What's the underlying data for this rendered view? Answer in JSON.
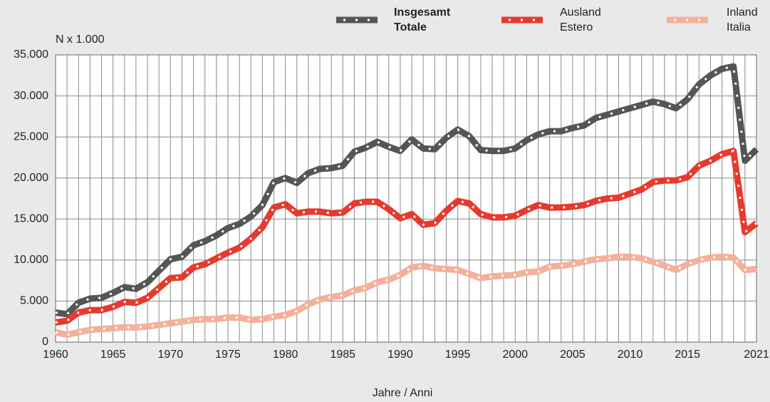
{
  "chart_data": {
    "type": "line",
    "y_axis_label": "N x 1.000",
    "x_axis_label": "Jahre / Anni",
    "x": [
      1960,
      1961,
      1962,
      1963,
      1964,
      1965,
      1966,
      1967,
      1968,
      1969,
      1970,
      1971,
      1972,
      1973,
      1974,
      1975,
      1976,
      1977,
      1978,
      1979,
      1980,
      1981,
      1982,
      1983,
      1984,
      1985,
      1986,
      1987,
      1988,
      1989,
      1990,
      1991,
      1992,
      1993,
      1994,
      1995,
      1996,
      1997,
      1998,
      1999,
      2000,
      2001,
      2002,
      2003,
      2004,
      2005,
      2006,
      2007,
      2008,
      2009,
      2010,
      2011,
      2012,
      2013,
      2014,
      2015,
      2016,
      2017,
      2018,
      2019,
      2020,
      2021
    ],
    "series": [
      {
        "name": "Insgesamt\nTotale",
        "color": "#555555",
        "values": [
          3600,
          3400,
          4800,
          5300,
          5400,
          6000,
          6700,
          6500,
          7300,
          8700,
          10100,
          10400,
          11800,
          12300,
          13000,
          13900,
          14400,
          15300,
          16700,
          19500,
          20000,
          19400,
          20600,
          21100,
          21200,
          21500,
          23200,
          23700,
          24400,
          23800,
          23300,
          24700,
          23600,
          23500,
          24900,
          25900,
          25100,
          23400,
          23300,
          23300,
          23600,
          24600,
          25300,
          25700,
          25700,
          26100,
          26400,
          27300,
          27700,
          28100,
          28500,
          28900,
          29300,
          29000,
          28500,
          29600,
          31400,
          32500,
          33300,
          33600,
          22100,
          23500
        ]
      },
      {
        "name": "Ausland\nEstero",
        "color": "#e8392e",
        "values": [
          2400,
          2600,
          3600,
          3900,
          3900,
          4300,
          4900,
          4800,
          5400,
          6600,
          7800,
          7900,
          9100,
          9500,
          10200,
          10900,
          11500,
          12600,
          14000,
          16400,
          16800,
          15700,
          15900,
          15900,
          15700,
          15800,
          16900,
          17100,
          17100,
          16200,
          15100,
          15600,
          14300,
          14500,
          16000,
          17200,
          16900,
          15600,
          15200,
          15200,
          15400,
          16100,
          16700,
          16400,
          16400,
          16500,
          16700,
          17200,
          17500,
          17600,
          18100,
          18600,
          19500,
          19700,
          19700,
          20100,
          21500,
          22100,
          22900,
          23300,
          13400,
          14500
        ]
      },
      {
        "name": "Inland\nItalia",
        "color": "#f5b09a",
        "values": [
          1200,
          900,
          1200,
          1500,
          1600,
          1700,
          1800,
          1800,
          1900,
          2100,
          2300,
          2500,
          2700,
          2800,
          2800,
          3000,
          3000,
          2700,
          2800,
          3100,
          3300,
          3800,
          4600,
          5200,
          5500,
          5700,
          6300,
          6600,
          7300,
          7600,
          8200,
          9100,
          9300,
          9000,
          8900,
          8800,
          8300,
          7800,
          8000,
          8100,
          8200,
          8500,
          8600,
          9200,
          9300,
          9500,
          9800,
          10100,
          10200,
          10400,
          10400,
          10200,
          9800,
          9300,
          8800,
          9500,
          10000,
          10300,
          10400,
          10300,
          8800,
          8900
        ]
      }
    ],
    "xlim": [
      1960,
      2021
    ],
    "xticks": [
      1960,
      1965,
      1970,
      1975,
      1980,
      1985,
      1990,
      1995,
      2000,
      2005,
      2010,
      2015,
      2021
    ],
    "ylim": [
      0,
      35000
    ],
    "yticks": [
      0,
      {
        "value": 5000,
        "label": "5.000"
      },
      {
        "value": 10000,
        "label": "10.000"
      },
      {
        "value": 15000,
        "label": "15.000"
      },
      {
        "value": 20000,
        "label": "20.000"
      },
      {
        "value": 25000,
        "label": "25.000"
      },
      {
        "value": 30000,
        "label": "30.000"
      },
      {
        "value": 35000,
        "label": "35.000"
      }
    ],
    "grid": true
  }
}
